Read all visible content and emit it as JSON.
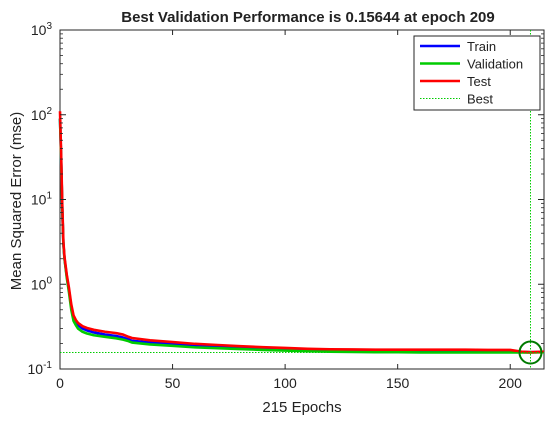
{
  "chart_data": {
    "type": "line",
    "title": "Best Validation Performance is 0.15644 at epoch 209",
    "xlabel": "215 Epochs",
    "ylabel": "Mean Squared Error  (mse)",
    "xlim": [
      0,
      215
    ],
    "ylim": [
      0.1,
      1000
    ],
    "yscale": "log",
    "xticks": [
      "0",
      "50",
      "100",
      "150",
      "200"
    ],
    "xtick_values": [
      0,
      50,
      100,
      150,
      200
    ],
    "yticks": [
      {
        "base": "10",
        "exp": "-1",
        "value": 0.1
      },
      {
        "base": "10",
        "exp": "0",
        "value": 1
      },
      {
        "base": "10",
        "exp": "1",
        "value": 10
      },
      {
        "base": "10",
        "exp": "2",
        "value": 100
      },
      {
        "base": "10",
        "exp": "3",
        "value": 1000
      }
    ],
    "grid": false,
    "legend_position": "top-right",
    "series": [
      {
        "name": "Train",
        "color": "#0000ff",
        "x": [
          0,
          0.5,
          1,
          1.5,
          2,
          3,
          4,
          5,
          6,
          7,
          8,
          10,
          12,
          15,
          20,
          25,
          28,
          30,
          32,
          40,
          50,
          60,
          70,
          80,
          90,
          100,
          110,
          120,
          130,
          140,
          150,
          160,
          170,
          180,
          190,
          200,
          205,
          209,
          215
        ],
        "y": [
          90,
          30,
          8,
          3,
          2,
          1.25,
          0.85,
          0.55,
          0.4,
          0.36,
          0.33,
          0.3,
          0.285,
          0.27,
          0.255,
          0.245,
          0.235,
          0.225,
          0.215,
          0.205,
          0.198,
          0.19,
          0.185,
          0.18,
          0.176,
          0.172,
          0.168,
          0.166,
          0.164,
          0.163,
          0.162,
          0.162,
          0.161,
          0.161,
          0.16,
          0.16,
          0.159,
          0.158,
          0.158
        ]
      },
      {
        "name": "Validation",
        "color": "#00cc00",
        "x": [
          0,
          0.5,
          1,
          1.5,
          2,
          3,
          4,
          5,
          6,
          7,
          8,
          10,
          12,
          15,
          20,
          25,
          28,
          30,
          32,
          40,
          50,
          60,
          70,
          80,
          90,
          100,
          110,
          120,
          130,
          140,
          150,
          160,
          170,
          180,
          190,
          200,
          205,
          209,
          215
        ],
        "y": [
          90,
          30,
          8,
          3,
          2,
          1.2,
          0.8,
          0.5,
          0.37,
          0.33,
          0.3,
          0.275,
          0.262,
          0.25,
          0.24,
          0.23,
          0.222,
          0.215,
          0.205,
          0.195,
          0.188,
          0.18,
          0.176,
          0.172,
          0.168,
          0.165,
          0.162,
          0.16,
          0.159,
          0.158,
          0.158,
          0.157,
          0.157,
          0.157,
          0.157,
          0.157,
          0.157,
          0.15644,
          0.158
        ]
      },
      {
        "name": "Test",
        "color": "#ff0000",
        "x": [
          0,
          0.5,
          1,
          1.5,
          2,
          3,
          4,
          5,
          6,
          7,
          8,
          10,
          12,
          15,
          20,
          25,
          28,
          30,
          32,
          40,
          50,
          60,
          70,
          80,
          90,
          100,
          110,
          120,
          130,
          140,
          150,
          160,
          170,
          180,
          190,
          200,
          205,
          209,
          215
        ],
        "y": [
          110,
          35,
          9,
          3.2,
          2.1,
          1.3,
          0.9,
          0.58,
          0.43,
          0.38,
          0.35,
          0.32,
          0.305,
          0.29,
          0.275,
          0.265,
          0.255,
          0.242,
          0.232,
          0.218,
          0.208,
          0.198,
          0.192,
          0.186,
          0.181,
          0.177,
          0.173,
          0.171,
          0.17,
          0.169,
          0.169,
          0.169,
          0.169,
          0.169,
          0.168,
          0.168,
          0.16,
          0.158,
          0.16
        ]
      }
    ],
    "best": {
      "name": "Best",
      "color": "#00cc00",
      "epoch": 209,
      "value": 0.15644
    }
  }
}
